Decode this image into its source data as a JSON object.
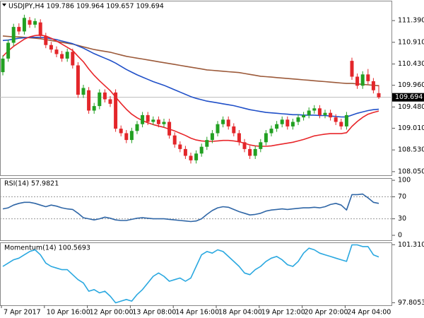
{
  "chart_data": [
    {
      "type": "candlestick",
      "title": "USDJPY,H4 109.786 109.964 109.657 109.694",
      "open": [
        110.25,
        110.55,
        110.9,
        111.25,
        111.15,
        111.4,
        111.3,
        111.35,
        111.05,
        110.85,
        110.75,
        110.65,
        110.55,
        110.7,
        110.4,
        109.75,
        109.85,
        109.4,
        109.5,
        109.8,
        109.65,
        109.8,
        109.0,
        108.9,
        108.75,
        108.95,
        109.1,
        109.3,
        109.15,
        109.2,
        109.1,
        109.15,
        108.85,
        108.65,
        108.55,
        108.4,
        108.3,
        108.45,
        108.6,
        108.75,
        108.9,
        109.1,
        109.2,
        109.05,
        108.9,
        108.7,
        108.55,
        108.4,
        108.55,
        108.7,
        108.9,
        109.0,
        109.1,
        109.2,
        109.05,
        109.15,
        109.25,
        109.3,
        109.4,
        109.45,
        109.3,
        109.35,
        109.25,
        109.15,
        109.05,
        110.5,
        110.15,
        109.95,
        110.2,
        110.05,
        109.786
      ],
      "high": [
        110.62,
        110.97,
        111.32,
        111.33,
        111.52,
        111.47,
        111.44,
        111.42,
        111.12,
        110.92,
        110.82,
        110.72,
        110.77,
        110.77,
        110.47,
        109.97,
        109.92,
        109.57,
        109.87,
        109.87,
        109.72,
        109.87,
        109.07,
        108.97,
        109.02,
        109.17,
        109.37,
        109.37,
        109.27,
        109.27,
        109.22,
        109.22,
        108.92,
        108.72,
        108.62,
        108.47,
        108.52,
        108.67,
        108.82,
        108.97,
        109.17,
        109.27,
        109.27,
        109.12,
        108.97,
        108.77,
        108.62,
        108.62,
        108.77,
        108.97,
        109.07,
        109.17,
        109.27,
        109.27,
        109.22,
        109.32,
        109.37,
        109.47,
        109.52,
        109.52,
        109.42,
        109.42,
        109.32,
        109.22,
        109.37,
        110.57,
        110.22,
        110.27,
        110.32,
        110.12,
        109.964
      ],
      "low": [
        110.18,
        110.48,
        110.83,
        111.08,
        111.08,
        111.23,
        111.23,
        110.98,
        110.78,
        110.68,
        110.58,
        110.48,
        110.48,
        110.33,
        109.68,
        109.68,
        109.33,
        109.33,
        109.43,
        109.58,
        109.48,
        108.93,
        108.83,
        108.68,
        108.68,
        108.88,
        109.03,
        109.08,
        109.08,
        109.03,
        109.03,
        108.78,
        108.58,
        108.48,
        108.33,
        108.23,
        108.23,
        108.38,
        108.53,
        108.68,
        108.83,
        109.03,
        108.98,
        108.83,
        108.63,
        108.48,
        108.33,
        108.33,
        108.48,
        108.63,
        108.83,
        108.93,
        109.03,
        108.98,
        108.98,
        109.08,
        109.18,
        109.23,
        109.33,
        109.23,
        109.23,
        109.18,
        109.08,
        108.98,
        108.98,
        110.08,
        109.88,
        109.88,
        109.98,
        109.78,
        109.657
      ],
      "close": [
        110.55,
        110.9,
        111.25,
        111.15,
        111.45,
        111.3,
        111.38,
        111.05,
        110.85,
        110.75,
        110.65,
        110.55,
        110.7,
        110.4,
        109.75,
        109.9,
        109.4,
        109.5,
        109.8,
        109.65,
        109.55,
        109.0,
        108.9,
        108.75,
        108.95,
        109.1,
        109.3,
        109.15,
        109.2,
        109.1,
        109.15,
        108.85,
        108.65,
        108.55,
        108.4,
        108.3,
        108.45,
        108.6,
        108.75,
        108.9,
        109.1,
        109.2,
        109.05,
        108.9,
        108.7,
        108.55,
        108.4,
        108.55,
        108.7,
        108.9,
        109.0,
        109.1,
        109.2,
        109.05,
        109.15,
        109.25,
        109.3,
        109.4,
        109.45,
        109.3,
        109.35,
        109.25,
        109.15,
        109.05,
        109.3,
        110.15,
        109.95,
        110.2,
        110.05,
        109.85,
        109.694
      ],
      "up_color": "#22a022",
      "down_color": "#e3262a",
      "series": [
        {
          "color": "#9c5a3a",
          "values": [
            111.05,
            111.04,
            111.03,
            111.03,
            111.02,
            111.01,
            111.0,
            110.99,
            110.97,
            110.95,
            110.93,
            110.91,
            110.89,
            110.87,
            110.84,
            110.81,
            110.78,
            110.75,
            110.73,
            110.71,
            110.69,
            110.66,
            110.63,
            110.6,
            110.58,
            110.56,
            110.54,
            110.52,
            110.5,
            110.48,
            110.46,
            110.44,
            110.42,
            110.4,
            110.38,
            110.36,
            110.34,
            110.32,
            110.3,
            110.29,
            110.28,
            110.27,
            110.26,
            110.25,
            110.24,
            110.22,
            110.2,
            110.18,
            110.16,
            110.15,
            110.14,
            110.13,
            110.12,
            110.11,
            110.1,
            110.09,
            110.08,
            110.07,
            110.06,
            110.05,
            110.04,
            110.03,
            110.02,
            110.01,
            110.0,
            110.0,
            109.99,
            109.98,
            109.97,
            109.96,
            109.95
          ]
        },
        {
          "color": "#2050c8",
          "values": [
            110.95,
            110.96,
            110.98,
            111.0,
            111.01,
            111.02,
            111.02,
            111.02,
            111.01,
            110.99,
            110.97,
            110.94,
            110.91,
            110.88,
            110.83,
            110.78,
            110.72,
            110.66,
            110.61,
            110.56,
            110.51,
            110.45,
            110.38,
            110.31,
            110.25,
            110.19,
            110.14,
            110.09,
            110.04,
            110.0,
            109.96,
            109.91,
            109.86,
            109.81,
            109.76,
            109.71,
            109.67,
            109.64,
            109.61,
            109.59,
            109.57,
            109.55,
            109.53,
            109.51,
            109.48,
            109.45,
            109.42,
            109.4,
            109.38,
            109.36,
            109.35,
            109.34,
            109.33,
            109.32,
            109.31,
            109.31,
            109.3,
            109.3,
            109.3,
            109.29,
            109.29,
            109.28,
            109.27,
            109.26,
            109.26,
            109.3,
            109.34,
            109.37,
            109.4,
            109.42,
            109.43
          ]
        },
        {
          "color": "#e8262a",
          "values": [
            110.6,
            110.72,
            110.82,
            110.9,
            110.98,
            111.03,
            111.06,
            111.07,
            111.05,
            111.0,
            110.94,
            110.87,
            110.8,
            110.73,
            110.6,
            110.48,
            110.32,
            110.18,
            110.06,
            109.95,
            109.84,
            109.7,
            109.56,
            109.43,
            109.32,
            109.24,
            109.18,
            109.13,
            109.09,
            109.06,
            109.03,
            108.99,
            108.95,
            108.9,
            108.85,
            108.79,
            108.75,
            108.73,
            108.72,
            108.72,
            108.73,
            108.74,
            108.74,
            108.73,
            108.71,
            108.68,
            108.64,
            108.62,
            108.61,
            108.61,
            108.62,
            108.64,
            108.66,
            108.68,
            108.7,
            108.73,
            108.76,
            108.8,
            108.84,
            108.86,
            108.88,
            108.89,
            108.89,
            108.89,
            108.91,
            109.05,
            109.16,
            109.25,
            109.32,
            109.36,
            109.39
          ]
        }
      ],
      "last_price": 109.694,
      "ylim": [
        107.97,
        111.83
      ],
      "yticks": [
        {
          "value": 111.39,
          "label": "111.390"
        },
        {
          "value": 110.91,
          "label": "110.910"
        },
        {
          "value": 110.43,
          "label": "110.430"
        },
        {
          "value": 109.96,
          "label": "109.960"
        },
        {
          "value": 109.48,
          "label": "109.480"
        },
        {
          "value": 109.01,
          "label": "109.010"
        },
        {
          "value": 108.53,
          "label": "108.530"
        },
        {
          "value": 108.05,
          "label": "108.050"
        }
      ]
    },
    {
      "type": "line",
      "title": "RSI(14) 57.9821",
      "color": "#2f66a6",
      "values": [
        48,
        50,
        55,
        58,
        60,
        60,
        58,
        55,
        52,
        55,
        53,
        50,
        48,
        47,
        40,
        32,
        30,
        28,
        30,
        33,
        31,
        28,
        27,
        27,
        29,
        31,
        32,
        31,
        30,
        30,
        30,
        29,
        28,
        27,
        26,
        25,
        26,
        30,
        38,
        45,
        50,
        52,
        51,
        47,
        43,
        40,
        37,
        38,
        40,
        44,
        46,
        47,
        48,
        47,
        48,
        49,
        50,
        50,
        51,
        50,
        52,
        56,
        58,
        55,
        46,
        74,
        74,
        75,
        68,
        60,
        58
      ],
      "levels": [
        70,
        30
      ],
      "ylim": [
        -9,
        104
      ],
      "yticks": [
        100,
        70,
        30,
        0
      ]
    },
    {
      "type": "line",
      "title": "Momentum(14) 100.5693",
      "color": "#2aa8e0",
      "values": [
        100.0,
        100.2,
        100.4,
        100.5,
        100.7,
        100.9,
        101.0,
        100.7,
        100.2,
        100.0,
        99.9,
        99.8,
        99.8,
        99.5,
        99.2,
        99.0,
        98.5,
        98.6,
        98.4,
        98.5,
        98.2,
        97.8,
        97.9,
        98.0,
        97.9,
        98.3,
        98.6,
        99.0,
        99.4,
        99.6,
        99.4,
        99.1,
        99.2,
        99.3,
        99.1,
        99.3,
        100.0,
        100.7,
        100.9,
        100.8,
        101.0,
        100.9,
        100.6,
        100.3,
        100.0,
        99.6,
        99.5,
        99.8,
        100.0,
        100.3,
        100.5,
        100.6,
        100.4,
        100.1,
        100.0,
        100.3,
        100.8,
        101.1,
        101.0,
        100.8,
        100.7,
        100.6,
        100.5,
        100.4,
        100.3,
        101.3,
        101.3,
        101.2,
        101.2,
        100.7,
        100.57
      ],
      "ylim": [
        97.65,
        101.45
      ],
      "yticks": [
        101.3103,
        97.8053
      ],
      "categories": [
        "7 Apr 2017",
        null,
        null,
        null,
        null,
        null,
        null,
        null,
        "10 Apr 16:00",
        null,
        null,
        null,
        null,
        null,
        null,
        null,
        "12 Apr 00:00",
        null,
        null,
        null,
        null,
        null,
        null,
        null,
        "13 Apr 08:00",
        null,
        null,
        null,
        null,
        null,
        null,
        null,
        "14 Apr 16:00",
        null,
        null,
        null,
        null,
        null,
        null,
        null,
        "18 Apr 04:00",
        null,
        null,
        null,
        null,
        null,
        null,
        null,
        "19 Apr 12:00",
        null,
        null,
        null,
        null,
        null,
        null,
        null,
        "20 Apr 20:00",
        null,
        null,
        null,
        null,
        null,
        null,
        null,
        "24 Apr 04:00",
        null,
        null,
        null,
        null,
        null,
        null
      ]
    }
  ]
}
